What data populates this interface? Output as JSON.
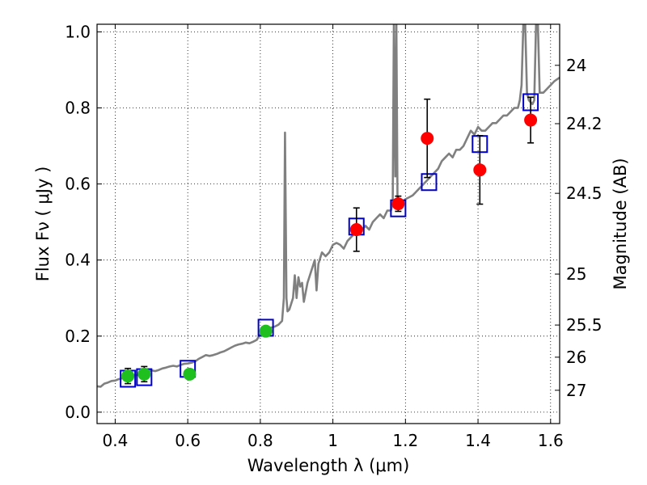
{
  "chart_data": {
    "type": "scatter",
    "xlabel": "Wavelength  λ (μm)",
    "ylabel": "Flux  Fν  ( μJy )",
    "y2label": "Magnitude (AB)",
    "xlim": [
      0.35,
      1.625
    ],
    "ylim": [
      -0.03,
      1.02
    ],
    "grid": true,
    "xticks": [
      {
        "value": 0.4,
        "label": "0.4"
      },
      {
        "value": 0.6,
        "label": "0.6"
      },
      {
        "value": 0.8,
        "label": "0.8"
      },
      {
        "value": 1.0,
        "label": "1"
      },
      {
        "value": 1.2,
        "label": "1.2"
      },
      {
        "value": 1.4,
        "label": "1.4"
      },
      {
        "value": 1.6,
        "label": "1.6"
      }
    ],
    "yticks": [
      {
        "value": 0.0,
        "label": "0.0"
      },
      {
        "value": 0.2,
        "label": "0.2"
      },
      {
        "value": 0.4,
        "label": "0.4"
      },
      {
        "value": 0.6,
        "label": "0.6"
      },
      {
        "value": 0.8,
        "label": "0.8"
      },
      {
        "value": 1.0,
        "label": "1.0"
      }
    ],
    "mag_ticks": [
      {
        "mag": 24.0,
        "label": "24"
      },
      {
        "mag": 24.2,
        "label": "24.2"
      },
      {
        "mag": 24.5,
        "label": "24.5"
      },
      {
        "mag": 25.0,
        "label": "25"
      },
      {
        "mag": 25.5,
        "label": "25.5"
      },
      {
        "mag": 26.0,
        "label": "26"
      },
      {
        "mag": 27.0,
        "label": "27"
      }
    ],
    "series": [
      {
        "kind": "model_spectrum",
        "color": "#808080",
        "points": [
          [
            0.35,
            0.068
          ],
          [
            0.36,
            0.067
          ],
          [
            0.37,
            0.075
          ],
          [
            0.38,
            0.078
          ],
          [
            0.39,
            0.082
          ],
          [
            0.4,
            0.083
          ],
          [
            0.41,
            0.087
          ],
          [
            0.42,
            0.089
          ],
          [
            0.43,
            0.09
          ],
          [
            0.44,
            0.092
          ],
          [
            0.45,
            0.096
          ],
          [
            0.46,
            0.098
          ],
          [
            0.47,
            0.1
          ],
          [
            0.48,
            0.104
          ],
          [
            0.49,
            0.106
          ],
          [
            0.5,
            0.11
          ],
          [
            0.51,
            0.108
          ],
          [
            0.52,
            0.111
          ],
          [
            0.53,
            0.115
          ],
          [
            0.54,
            0.117
          ],
          [
            0.55,
            0.12
          ],
          [
            0.56,
            0.122
          ],
          [
            0.57,
            0.12
          ],
          [
            0.58,
            0.124
          ],
          [
            0.59,
            0.127
          ],
          [
            0.6,
            0.128
          ],
          [
            0.61,
            0.13
          ],
          [
            0.62,
            0.133
          ],
          [
            0.63,
            0.14
          ],
          [
            0.64,
            0.145
          ],
          [
            0.65,
            0.15
          ],
          [
            0.66,
            0.148
          ],
          [
            0.67,
            0.15
          ],
          [
            0.68,
            0.153
          ],
          [
            0.69,
            0.157
          ],
          [
            0.7,
            0.16
          ],
          [
            0.71,
            0.165
          ],
          [
            0.72,
            0.17
          ],
          [
            0.73,
            0.175
          ],
          [
            0.74,
            0.178
          ],
          [
            0.75,
            0.18
          ],
          [
            0.76,
            0.183
          ],
          [
            0.77,
            0.181
          ],
          [
            0.78,
            0.185
          ],
          [
            0.79,
            0.19
          ],
          [
            0.8,
            0.205
          ],
          [
            0.81,
            0.215
          ],
          [
            0.82,
            0.22
          ],
          [
            0.83,
            0.222
          ],
          [
            0.84,
            0.225
          ],
          [
            0.85,
            0.23
          ],
          [
            0.86,
            0.24
          ],
          [
            0.865,
            0.3
          ],
          [
            0.868,
            0.735
          ],
          [
            0.872,
            0.3
          ],
          [
            0.875,
            0.265
          ],
          [
            0.88,
            0.27
          ],
          [
            0.89,
            0.3
          ],
          [
            0.895,
            0.36
          ],
          [
            0.9,
            0.3
          ],
          [
            0.905,
            0.355
          ],
          [
            0.91,
            0.33
          ],
          [
            0.915,
            0.34
          ],
          [
            0.92,
            0.29
          ],
          [
            0.93,
            0.34
          ],
          [
            0.94,
            0.37
          ],
          [
            0.95,
            0.4
          ],
          [
            0.955,
            0.32
          ],
          [
            0.96,
            0.39
          ],
          [
            0.97,
            0.42
          ],
          [
            0.98,
            0.41
          ],
          [
            0.99,
            0.42
          ],
          [
            1.0,
            0.44
          ],
          [
            1.01,
            0.445
          ],
          [
            1.02,
            0.44
          ],
          [
            1.03,
            0.43
          ],
          [
            1.04,
            0.45
          ],
          [
            1.05,
            0.46
          ],
          [
            1.06,
            0.47
          ],
          [
            1.07,
            0.475
          ],
          [
            1.08,
            0.48
          ],
          [
            1.09,
            0.49
          ],
          [
            1.1,
            0.48
          ],
          [
            1.11,
            0.5
          ],
          [
            1.12,
            0.51
          ],
          [
            1.13,
            0.52
          ],
          [
            1.14,
            0.51
          ],
          [
            1.15,
            0.53
          ],
          [
            1.16,
            0.53
          ],
          [
            1.165,
            0.55
          ],
          [
            1.168,
            1.02
          ],
          [
            1.172,
            0.62
          ],
          [
            1.175,
            1.02
          ],
          [
            1.178,
            0.56
          ],
          [
            1.18,
            0.55
          ],
          [
            1.19,
            0.55
          ],
          [
            1.2,
            0.56
          ],
          [
            1.21,
            0.565
          ],
          [
            1.22,
            0.57
          ],
          [
            1.23,
            0.58
          ],
          [
            1.24,
            0.59
          ],
          [
            1.25,
            0.6
          ],
          [
            1.26,
            0.61
          ],
          [
            1.27,
            0.62
          ],
          [
            1.28,
            0.63
          ],
          [
            1.29,
            0.64
          ],
          [
            1.3,
            0.66
          ],
          [
            1.31,
            0.67
          ],
          [
            1.32,
            0.68
          ],
          [
            1.33,
            0.67
          ],
          [
            1.34,
            0.69
          ],
          [
            1.35,
            0.69
          ],
          [
            1.36,
            0.7
          ],
          [
            1.37,
            0.72
          ],
          [
            1.38,
            0.74
          ],
          [
            1.39,
            0.73
          ],
          [
            1.4,
            0.75
          ],
          [
            1.41,
            0.74
          ],
          [
            1.42,
            0.74
          ],
          [
            1.43,
            0.75
          ],
          [
            1.44,
            0.76
          ],
          [
            1.45,
            0.76
          ],
          [
            1.46,
            0.77
          ],
          [
            1.47,
            0.78
          ],
          [
            1.48,
            0.78
          ],
          [
            1.49,
            0.79
          ],
          [
            1.5,
            0.8
          ],
          [
            1.51,
            0.8
          ],
          [
            1.515,
            0.82
          ],
          [
            1.52,
            0.86
          ],
          [
            1.525,
            1.02
          ],
          [
            1.53,
            1.02
          ],
          [
            1.535,
            0.84
          ],
          [
            1.54,
            0.82
          ],
          [
            1.55,
            0.81
          ],
          [
            1.555,
            0.82
          ],
          [
            1.56,
            1.02
          ],
          [
            1.565,
            1.02
          ],
          [
            1.57,
            0.84
          ],
          [
            1.58,
            0.84
          ],
          [
            1.59,
            0.85
          ],
          [
            1.6,
            0.86
          ],
          [
            1.61,
            0.87
          ],
          [
            1.625,
            0.88
          ]
        ]
      },
      {
        "kind": "model_bandpass",
        "marker": "square",
        "color": "#0000cc",
        "points": [
          [
            0.435,
            0.088
          ],
          [
            0.48,
            0.092
          ],
          [
            0.6,
            0.114
          ],
          [
            0.815,
            0.222
          ],
          [
            1.065,
            0.488
          ],
          [
            1.18,
            0.536
          ],
          [
            1.265,
            0.605
          ],
          [
            1.405,
            0.705
          ],
          [
            1.545,
            0.815
          ]
        ]
      },
      {
        "kind": "observed_optical",
        "marker": "circle",
        "color": "#1fbf1f",
        "points": [
          [
            0.435,
            0.095,
            0.02
          ],
          [
            0.48,
            0.1,
            0.02
          ],
          [
            0.605,
            0.1,
            0.012
          ],
          [
            0.815,
            0.213,
            0.012
          ]
        ]
      },
      {
        "kind": "observed_nir",
        "marker": "circle",
        "color": "#ff0000",
        "points": [
          [
            1.065,
            0.48,
            0.057
          ],
          [
            1.18,
            0.548,
            0.02
          ],
          [
            1.26,
            0.72,
            0.103
          ],
          [
            1.405,
            0.637,
            0.09
          ],
          [
            1.545,
            0.768,
            0.06
          ]
        ]
      }
    ]
  }
}
